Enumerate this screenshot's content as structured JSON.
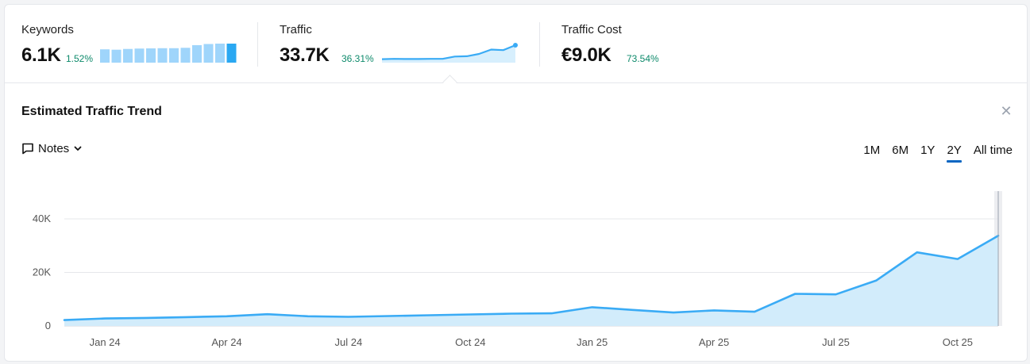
{
  "metrics": [
    {
      "label": "Keywords",
      "value": "6.1K",
      "delta": "1.52%"
    },
    {
      "label": "Traffic",
      "value": "33.7K",
      "delta": "36.31%"
    },
    {
      "label": "Traffic Cost",
      "value": "€9.0K",
      "delta": "73.54%"
    }
  ],
  "colors": {
    "accent": "#3aabf5",
    "fill": "#d2ecfb",
    "positive": "#0e8a6b",
    "active_tab": "#0a66c2"
  },
  "keywords_sparkline": [
    0.7,
    0.68,
    0.72,
    0.74,
    0.75,
    0.76,
    0.76,
    0.78,
    0.92,
    0.98,
    1.0,
    1.0
  ],
  "traffic_sparkline": [
    0.2,
    0.22,
    0.21,
    0.21,
    0.22,
    0.22,
    0.35,
    0.37,
    0.5,
    0.75,
    0.72,
    1.0
  ],
  "trend": {
    "title": "Estimated Traffic Trend",
    "close_icon": "close-icon",
    "notes_label": "Notes",
    "ranges": [
      "1M",
      "6M",
      "1Y",
      "2Y",
      "All time"
    ],
    "active_range": "2Y"
  },
  "chart_data": {
    "type": "area",
    "x": [
      "Dec 23",
      "Jan 24",
      "Feb 24",
      "Mar 24",
      "Apr 24",
      "May 24",
      "Jun 24",
      "Jul 24",
      "Aug 24",
      "Sep 24",
      "Oct 24",
      "Nov 24",
      "Dec 24",
      "Jan 25",
      "Feb 25",
      "Mar 25",
      "Apr 25",
      "May 25",
      "Jun 25",
      "Jul 25",
      "Aug 25",
      "Sep 25",
      "Oct 25",
      "Nov 25"
    ],
    "values": [
      2200,
      2800,
      3000,
      3300,
      3600,
      4400,
      3600,
      3400,
      3700,
      4000,
      4300,
      4600,
      4700,
      7000,
      6000,
      5000,
      5800,
      5300,
      12000,
      11800,
      17000,
      27500,
      25000,
      33700
    ],
    "x_tick_labels": [
      "Jan 24",
      "Apr 24",
      "Jul 24",
      "Oct 24",
      "Jan 25",
      "Apr 25",
      "Jul 25",
      "Oct 25"
    ],
    "x_tick_indices": [
      1,
      4,
      7,
      10,
      13,
      16,
      19,
      22
    ],
    "y_tick_labels": [
      "0",
      "20K",
      "40K"
    ],
    "y_tick_values": [
      0,
      20000,
      40000
    ],
    "ylim": [
      0,
      40000
    ],
    "grid": true
  }
}
